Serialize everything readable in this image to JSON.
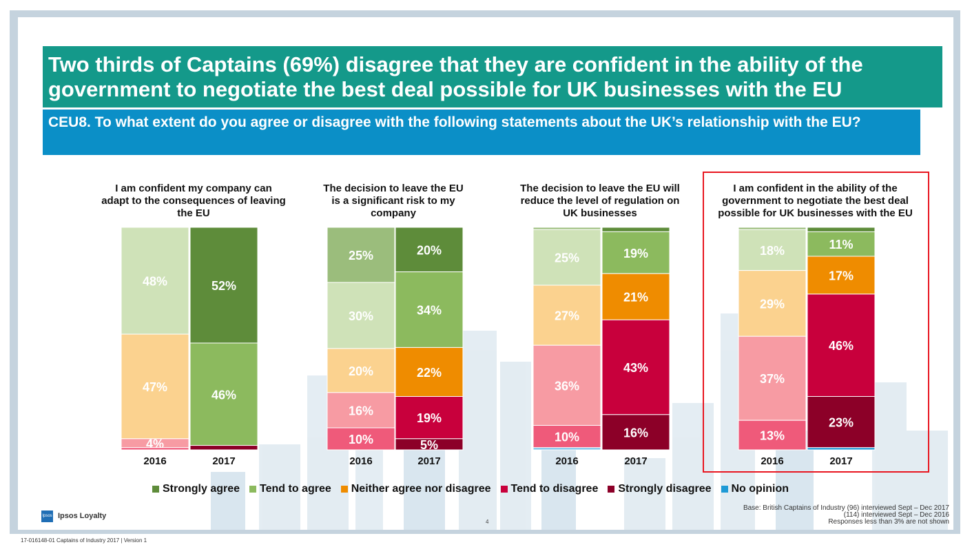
{
  "title": "Two thirds of Captains (69%) disagree that they are confident in the ability of the government to negotiate the best deal possible for UK businesses with the EU",
  "question": "CEU8. To what extent do you agree or disagree with the following statements about the UK’s relationship with the EU?",
  "colors": {
    "strongly_agree": "#5e8c3a",
    "tend_agree": "#8cba5e",
    "neither": "#ef8c00",
    "tend_disagree": "#c8003c",
    "strongly_disagree": "#8c0028",
    "no_opinion": "#1f9ad6",
    "strongly_agree_2016": "#9bbd7c",
    "tend_agree_2016": "#cfe2b8",
    "neither_2016": "#fbd28f",
    "tend_disagree_2016": "#f79ba3",
    "strongly_disagree_2016": "#ef5a7a",
    "no_opinion_2016": "#7cc5ea"
  },
  "chart_data": [
    {
      "type": "bar",
      "title": "I am confident my company can adapt to the consequences of leaving the EU",
      "categories": [
        "2016",
        "2017"
      ],
      "series": [
        {
          "name": "Strongly agree",
          "values": [
            0,
            52
          ]
        },
        {
          "name": "Tend to agree",
          "values": [
            48,
            46
          ]
        },
        {
          "name": "Neither agree nor disagree",
          "values": [
            47,
            0
          ]
        },
        {
          "name": "Tend to disagree",
          "values": [
            4,
            0
          ]
        },
        {
          "name": "Strongly disagree",
          "values": [
            1,
            2
          ]
        },
        {
          "name": "No opinion",
          "values": [
            0,
            0
          ]
        }
      ],
      "labels": [
        [
          "",
          "48%",
          "47%",
          "4%",
          "",
          ""
        ],
        [
          "52%",
          "46%",
          "",
          "",
          "",
          ""
        ]
      ]
    },
    {
      "type": "bar",
      "title": "The decision to leave the EU is a significant risk to my company",
      "categories": [
        "2016",
        "2017"
      ],
      "series": [
        {
          "name": "Strongly agree",
          "values": [
            25,
            20
          ]
        },
        {
          "name": "Tend to agree",
          "values": [
            30,
            34
          ]
        },
        {
          "name": "Neither agree nor disagree",
          "values": [
            20,
            22
          ]
        },
        {
          "name": "Tend to disagree",
          "values": [
            16,
            19
          ]
        },
        {
          "name": "Strongly disagree",
          "values": [
            10,
            5
          ]
        },
        {
          "name": "No opinion",
          "values": [
            0,
            0
          ]
        }
      ],
      "labels": [
        [
          "25%",
          "30%",
          "20%",
          "16%",
          "10%",
          ""
        ],
        [
          "20%",
          "34%",
          "22%",
          "19%",
          "5%",
          ""
        ]
      ]
    },
    {
      "type": "bar",
      "title": "The decision to leave the EU will reduce the level of regulation on UK businesses",
      "categories": [
        "2016",
        "2017"
      ],
      "series": [
        {
          "name": "Strongly agree",
          "values": [
            1,
            2
          ]
        },
        {
          "name": "Tend to agree",
          "values": [
            25,
            19
          ]
        },
        {
          "name": "Neither agree nor disagree",
          "values": [
            27,
            21
          ]
        },
        {
          "name": "Tend to disagree",
          "values": [
            36,
            43
          ]
        },
        {
          "name": "Strongly disagree",
          "values": [
            10,
            16
          ]
        },
        {
          "name": "No opinion",
          "values": [
            1,
            0
          ]
        }
      ],
      "labels": [
        [
          "",
          "25%",
          "27%",
          "36%",
          "10%",
          ""
        ],
        [
          "",
          "19%",
          "21%",
          "43%",
          "16%",
          ""
        ]
      ]
    },
    {
      "type": "bar",
      "title": "I am confident in the ability of the government to negotiate the best deal possible for UK businesses with the EU",
      "categories": [
        "2016",
        "2017"
      ],
      "series": [
        {
          "name": "Strongly agree",
          "values": [
            1,
            2
          ]
        },
        {
          "name": "Tend to agree",
          "values": [
            18,
            11
          ]
        },
        {
          "name": "Neither agree nor disagree",
          "values": [
            29,
            17
          ]
        },
        {
          "name": "Tend to disagree",
          "values": [
            37,
            46
          ]
        },
        {
          "name": "Strongly disagree",
          "values": [
            13,
            23
          ]
        },
        {
          "name": "No opinion",
          "values": [
            0,
            1
          ]
        }
      ],
      "labels": [
        [
          "",
          "18%",
          "29%",
          "37%",
          "13%",
          ""
        ],
        [
          "",
          "11%",
          "17%",
          "46%",
          "23%",
          ""
        ]
      ]
    }
  ],
  "legend": [
    "Strongly agree",
    "Tend to agree",
    "Neither agree nor disagree",
    "Tend to disagree",
    "Strongly disagree",
    "No opinion"
  ],
  "logo_short": "Ipsos",
  "logo_name": "Ipsos Loyalty",
  "page_number": "4",
  "base_note": [
    "Base: British Captains of Industry (96) interviewed Sept – Dec 2017",
    "(114) interviewed Sept – Dec 2016",
    "Responses less than 3% are not shown"
  ],
  "footer": "17-016148-01 Captains of Industry 2017 | Version 1"
}
